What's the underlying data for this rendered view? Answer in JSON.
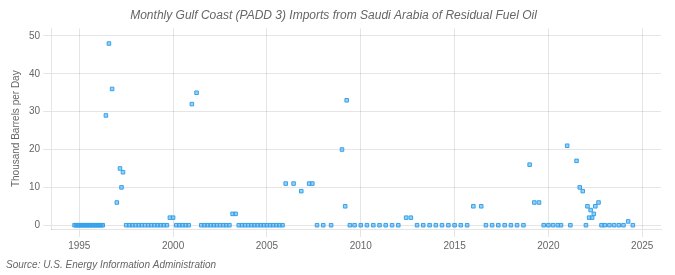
{
  "chart_data": {
    "type": "scatter",
    "title": "Monthly Gulf Coast (PADD 3) Imports from Saudi Arabia of Residual Fuel Oil",
    "ylabel": "Thousand Barrels per Day",
    "annotations": [
      "Source: U.S. Energy Information Administration"
    ],
    "marker": "square",
    "grid": true,
    "xlim": [
      1993.5,
      2026.0
    ],
    "ylim": [
      -1,
      52
    ],
    "xticks": [
      1995,
      2000,
      2005,
      2010,
      2015,
      2020,
      2025
    ],
    "yticks": [
      0,
      10,
      20,
      30,
      40,
      50
    ],
    "x": [
      1994.75,
      1994.83,
      1994.92,
      1995.0,
      1995.08,
      1995.17,
      1995.25,
      1995.33,
      1995.42,
      1995.5,
      1995.58,
      1995.67,
      1995.75,
      1995.83,
      1995.92,
      1996.0,
      1996.08,
      1996.17,
      1996.25,
      1996.42,
      1996.58,
      1996.75,
      1997.0,
      1997.17,
      1997.25,
      1997.33,
      1997.5,
      1997.67,
      1997.83,
      1998.0,
      1998.17,
      1998.33,
      1998.5,
      1998.67,
      1998.83,
      1999.0,
      1999.17,
      1999.33,
      1999.5,
      1999.67,
      1999.83,
      2000.0,
      2000.17,
      2000.33,
      2000.5,
      2000.67,
      2000.83,
      2001.0,
      2001.25,
      2001.5,
      2001.67,
      2001.83,
      2002.0,
      2002.17,
      2002.33,
      2002.5,
      2002.67,
      2002.83,
      2003.0,
      2003.17,
      2003.33,
      2003.5,
      2003.67,
      2003.83,
      2004.0,
      2004.17,
      2004.33,
      2004.5,
      2004.67,
      2004.83,
      2005.0,
      2005.17,
      2005.33,
      2005.5,
      2005.67,
      2005.83,
      2006.0,
      2006.42,
      2006.83,
      2007.25,
      2007.42,
      2007.67,
      2008.0,
      2008.42,
      2009.0,
      2009.17,
      2009.25,
      2009.42,
      2009.67,
      2010.0,
      2010.33,
      2010.67,
      2011.0,
      2011.33,
      2011.67,
      2012.0,
      2012.42,
      2012.67,
      2013.0,
      2013.33,
      2013.67,
      2014.0,
      2014.33,
      2014.67,
      2015.0,
      2015.33,
      2015.67,
      2016.0,
      2016.42,
      2016.67,
      2017.0,
      2017.33,
      2017.67,
      2018.0,
      2018.33,
      2018.67,
      2019.0,
      2019.25,
      2019.5,
      2019.75,
      2020.0,
      2020.25,
      2020.5,
      2020.67,
      2021.0,
      2021.17,
      2021.5,
      2021.67,
      2021.83,
      2022.0,
      2022.08,
      2022.17,
      2022.25,
      2022.33,
      2022.42,
      2022.5,
      2022.67,
      2022.83,
      2023.0,
      2023.25,
      2023.5,
      2023.75,
      2024.0,
      2024.25,
      2024.5
    ],
    "values": [
      0,
      0,
      0,
      0,
      0,
      0,
      0,
      0,
      0,
      0,
      0,
      0,
      0,
      0,
      0,
      0,
      0,
      0,
      0,
      29,
      48,
      36,
      6,
      15,
      10,
      14,
      0,
      0,
      0,
      0,
      0,
      0,
      0,
      0,
      0,
      0,
      0,
      0,
      0,
      0,
      2,
      2,
      0,
      0,
      0,
      0,
      0,
      32,
      35,
      0,
      0,
      0,
      0,
      0,
      0,
      0,
      0,
      0,
      0,
      3,
      3,
      0,
      0,
      0,
      0,
      0,
      0,
      0,
      0,
      0,
      0,
      0,
      0,
      0,
      0,
      0,
      11,
      11,
      9,
      11,
      11,
      0,
      0,
      0,
      20,
      5,
      33,
      0,
      0,
      0,
      0,
      0,
      0,
      0,
      0,
      0,
      2,
      2,
      0,
      0,
      0,
      0,
      0,
      0,
      0,
      0,
      0,
      5,
      5,
      0,
      0,
      0,
      0,
      0,
      0,
      0,
      16,
      6,
      6,
      0,
      0,
      0,
      0,
      0,
      21,
      0,
      17,
      10,
      9,
      0,
      5,
      2,
      4,
      2,
      3,
      5,
      6,
      0,
      0,
      0,
      0,
      0,
      0,
      1,
      0
    ]
  }
}
